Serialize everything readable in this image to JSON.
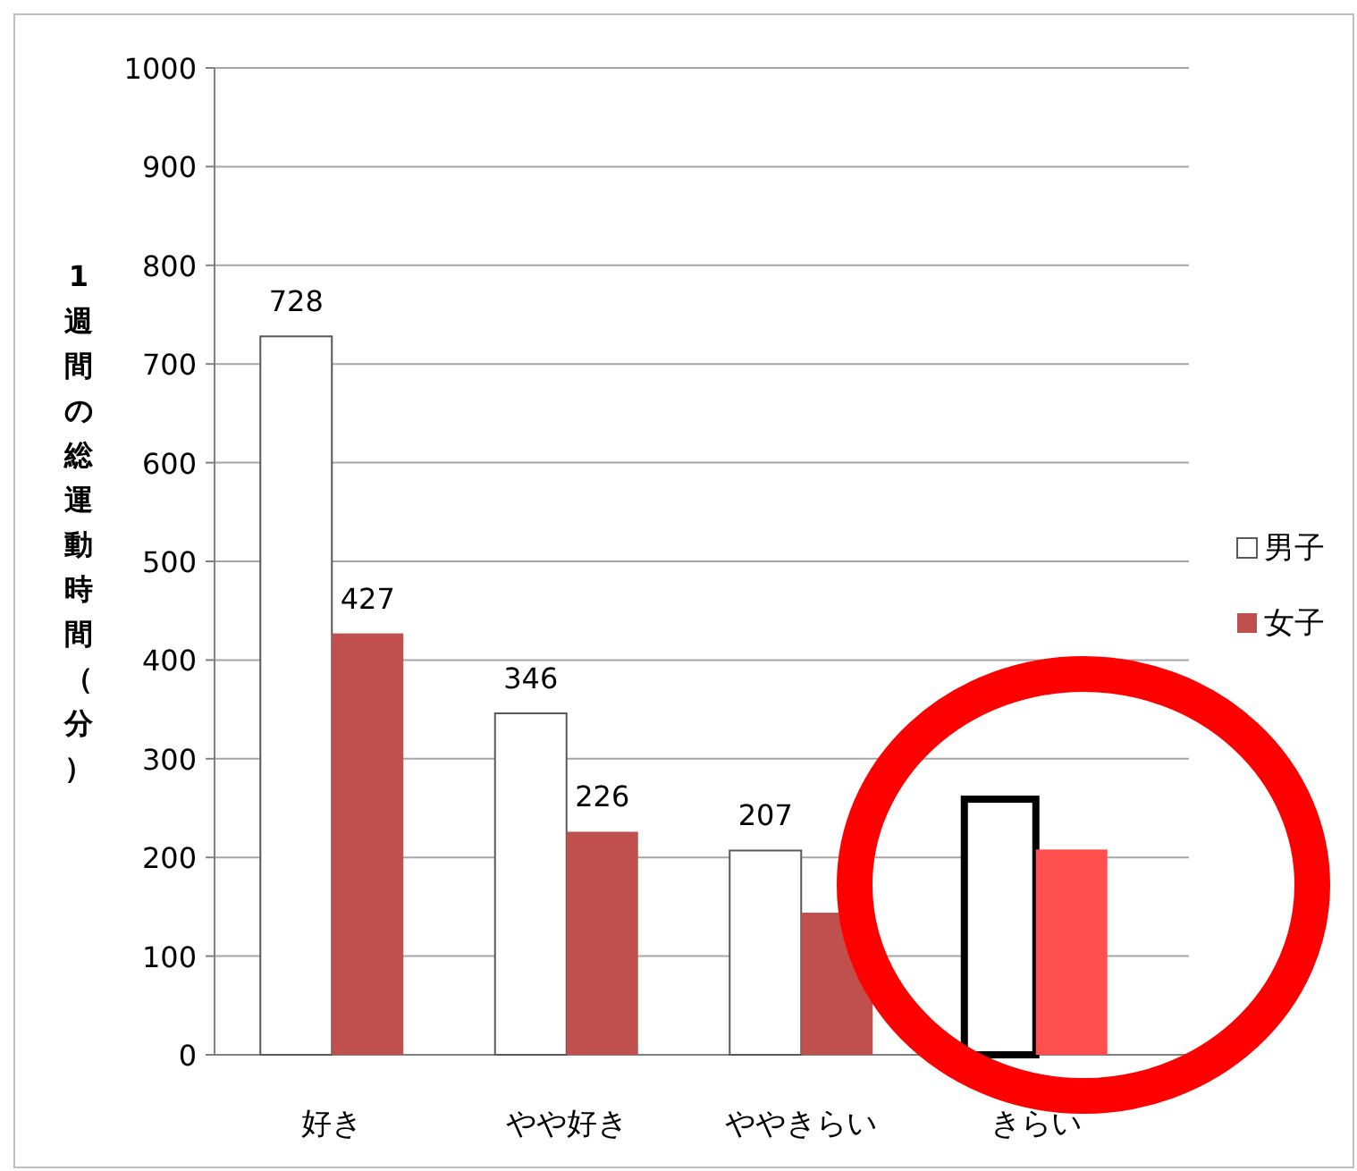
{
  "chart_data": {
    "type": "bar",
    "ylabel": "1週間の総運動時間（分）",
    "categories": [
      "好き",
      "やや好き",
      "ややきらい",
      "きらい"
    ],
    "series": [
      {
        "name": "男子",
        "color": "#ffffff",
        "colors": [
          "#ffffff",
          "#ffffff",
          "#ffffff",
          "#ffffff"
        ],
        "values": [
          728,
          346,
          207,
          259
        ],
        "value_labels": [
          "728",
          "346",
          "207",
          null
        ]
      },
      {
        "name": "女子",
        "color": "#c0504d",
        "colors": [
          "#c0504d",
          "#c0504d",
          "#c0504d",
          "#ff5050"
        ],
        "values": [
          427,
          226,
          144,
          208
        ],
        "value_labels": [
          "427",
          "226",
          null,
          null
        ]
      }
    ],
    "ylim": [
      0,
      1000
    ],
    "yticks": [
      0,
      100,
      200,
      300,
      400,
      500,
      600,
      700,
      800,
      900,
      1000
    ],
    "grid": "y",
    "legend": "right"
  }
}
